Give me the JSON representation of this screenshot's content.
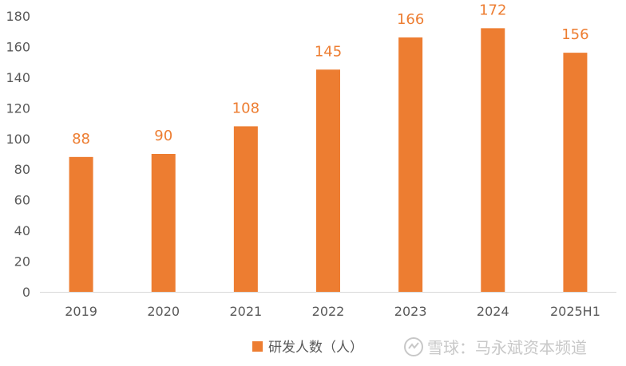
{
  "chart_data": {
    "type": "bar",
    "categories": [
      "2019",
      "2020",
      "2021",
      "2022",
      "2023",
      "2024",
      "2025H1"
    ],
    "series": [
      {
        "name": "研发人数（人）",
        "values": [
          88,
          90,
          108,
          145,
          166,
          172,
          156
        ],
        "color": "#ED7D31"
      }
    ],
    "ylim": [
      0,
      180
    ],
    "yticks": [
      0,
      20,
      40,
      60,
      80,
      100,
      120,
      140,
      160,
      180
    ],
    "grid": false,
    "legend": "bottom",
    "data_label_color": "#ED7D31",
    "axis_color": "#D9D9D9",
    "tick_label_color": "#595959"
  },
  "watermark": {
    "text": "雪球：马永斌资本频道"
  }
}
